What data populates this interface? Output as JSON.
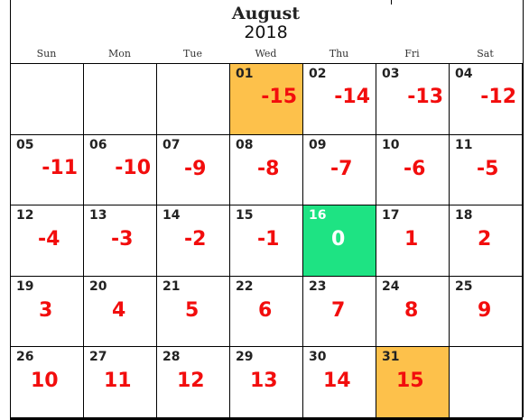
{
  "calendar": {
    "month": "August",
    "year": "2018",
    "weekdays": [
      "Sun",
      "Mon",
      "Tue",
      "Wed",
      "Thu",
      "Fri",
      "Sat"
    ],
    "cells": [
      {
        "day": "",
        "value": "",
        "style": "plain"
      },
      {
        "day": "",
        "value": "",
        "style": "plain"
      },
      {
        "day": "",
        "value": "",
        "style": "plain"
      },
      {
        "day": "01",
        "value": "-15",
        "style": "orange"
      },
      {
        "day": "02",
        "value": "-14",
        "style": "plain"
      },
      {
        "day": "03",
        "value": "-13",
        "style": "plain"
      },
      {
        "day": "04",
        "value": "-12",
        "style": "plain"
      },
      {
        "day": "05",
        "value": "-11",
        "style": "plain"
      },
      {
        "day": "06",
        "value": "-10",
        "style": "plain"
      },
      {
        "day": "07",
        "value": "-9",
        "style": "plain"
      },
      {
        "day": "08",
        "value": "-8",
        "style": "plain"
      },
      {
        "day": "09",
        "value": "-7",
        "style": "plain"
      },
      {
        "day": "10",
        "value": "-6",
        "style": "plain"
      },
      {
        "day": "11",
        "value": "-5",
        "style": "plain"
      },
      {
        "day": "12",
        "value": "-4",
        "style": "plain"
      },
      {
        "day": "13",
        "value": "-3",
        "style": "plain"
      },
      {
        "day": "14",
        "value": "-2",
        "style": "plain"
      },
      {
        "day": "15",
        "value": "-1",
        "style": "plain"
      },
      {
        "day": "16",
        "value": "0",
        "style": "green"
      },
      {
        "day": "17",
        "value": "1",
        "style": "plain"
      },
      {
        "day": "18",
        "value": "2",
        "style": "plain"
      },
      {
        "day": "19",
        "value": "3",
        "style": "plain"
      },
      {
        "day": "20",
        "value": "4",
        "style": "plain"
      },
      {
        "day": "21",
        "value": "5",
        "style": "plain"
      },
      {
        "day": "22",
        "value": "6",
        "style": "plain"
      },
      {
        "day": "23",
        "value": "7",
        "style": "plain"
      },
      {
        "day": "24",
        "value": "8",
        "style": "plain"
      },
      {
        "day": "25",
        "value": "9",
        "style": "plain"
      },
      {
        "day": "26",
        "value": "10",
        "style": "plain"
      },
      {
        "day": "27",
        "value": "11",
        "style": "plain"
      },
      {
        "day": "28",
        "value": "12",
        "style": "plain"
      },
      {
        "day": "29",
        "value": "13",
        "style": "plain"
      },
      {
        "day": "30",
        "value": "14",
        "style": "plain"
      },
      {
        "day": "31",
        "value": "15",
        "style": "orange"
      },
      {
        "day": "",
        "value": "",
        "style": "plain"
      }
    ]
  },
  "colors": {
    "highlight": "#fdc14b",
    "today": "#1ee383",
    "value_text": "#f20d0d"
  }
}
